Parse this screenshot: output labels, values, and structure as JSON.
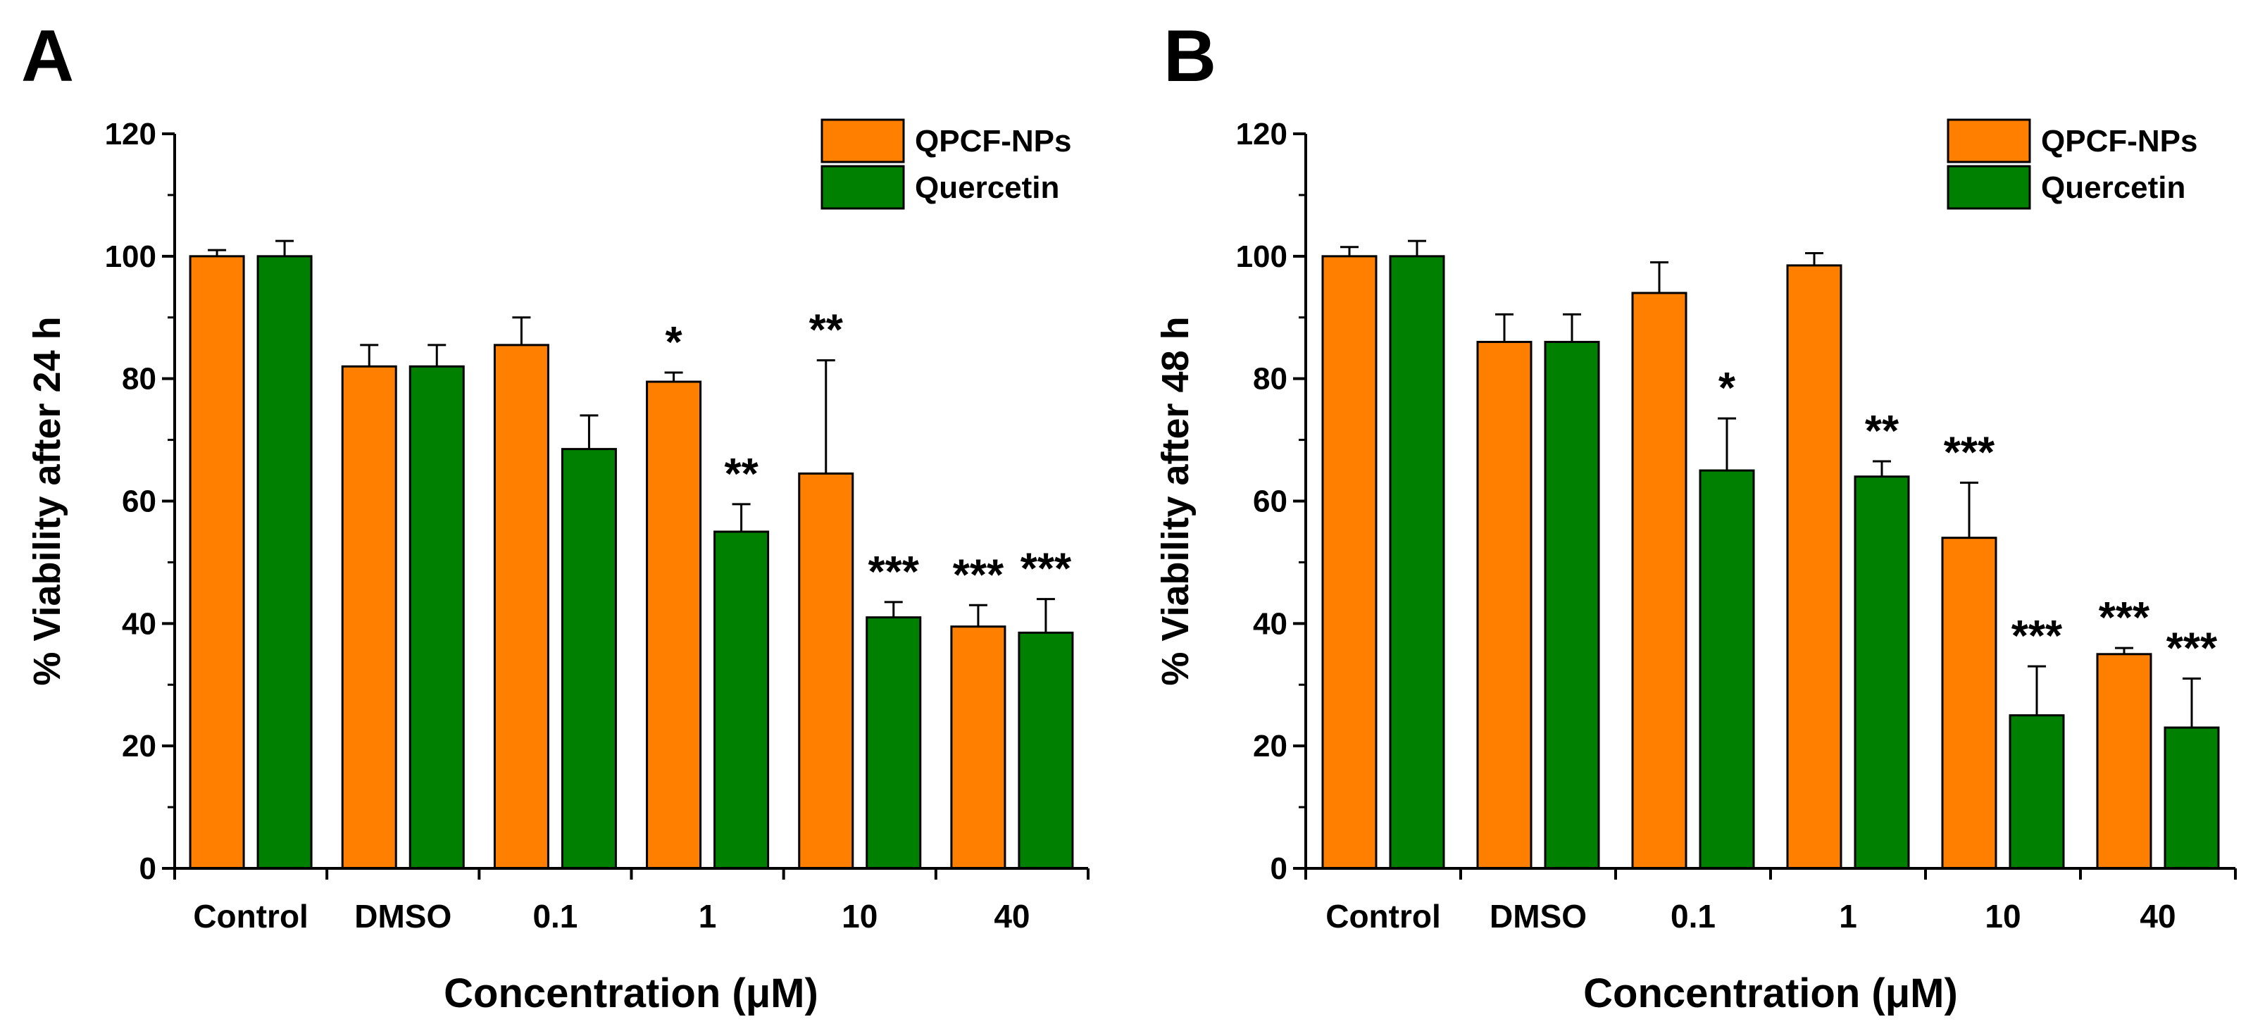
{
  "colors": {
    "qpcf": "#FF7F00",
    "quercetin": "#008000",
    "axis": "#000000",
    "background": "#FFFFFF"
  },
  "chart_data": [
    {
      "type": "bar",
      "panel_label": "A",
      "title": "",
      "xlabel": "Concentration (μM)",
      "ylabel": "% Viability after 24 h",
      "ylim": [
        0,
        120
      ],
      "yticks": [
        0,
        20,
        40,
        60,
        80,
        100,
        120
      ],
      "categories": [
        "Control",
        "DMSO",
        "0.1",
        "1",
        "10",
        "40"
      ],
      "legend": {
        "position": "top-right",
        "entries": [
          "QPCF-NPs",
          "Quercetin"
        ]
      },
      "series": [
        {
          "name": "QPCF-NPs",
          "values": [
            100,
            82,
            85.5,
            79.5,
            64.5,
            39.5
          ],
          "errors": [
            1,
            3.5,
            4.5,
            1.5,
            18.5,
            3.5
          ],
          "annotations": [
            "",
            "",
            "",
            "*",
            "**",
            "***"
          ]
        },
        {
          "name": "Quercetin",
          "values": [
            100,
            82,
            68.5,
            55,
            41,
            38.5
          ],
          "errors": [
            2.5,
            3.5,
            5.5,
            4.5,
            2.5,
            5.5
          ],
          "annotations": [
            "",
            "",
            "",
            "**",
            "***",
            "***"
          ]
        }
      ]
    },
    {
      "type": "bar",
      "panel_label": "B",
      "title": "",
      "xlabel": "Concentration (μM)",
      "ylabel": "% Viability after 48 h",
      "ylim": [
        0,
        120
      ],
      "yticks": [
        0,
        20,
        40,
        60,
        80,
        100,
        120
      ],
      "categories": [
        "Control",
        "DMSO",
        "0.1",
        "1",
        "10",
        "40"
      ],
      "legend": {
        "position": "top-right",
        "entries": [
          "QPCF-NPs",
          "Quercetin"
        ]
      },
      "series": [
        {
          "name": "QPCF-NPs",
          "values": [
            100,
            86,
            94,
            98.5,
            54,
            35
          ],
          "errors": [
            1.5,
            4.5,
            5,
            2,
            9,
            1
          ],
          "annotations": [
            "",
            "",
            "",
            "",
            "***",
            "***"
          ]
        },
        {
          "name": "Quercetin",
          "values": [
            100,
            86,
            65,
            64,
            25,
            23
          ],
          "errors": [
            2.5,
            4.5,
            8.5,
            2.5,
            8,
            8
          ],
          "annotations": [
            "",
            "",
            "*",
            "**",
            "***",
            "***"
          ]
        }
      ]
    }
  ]
}
